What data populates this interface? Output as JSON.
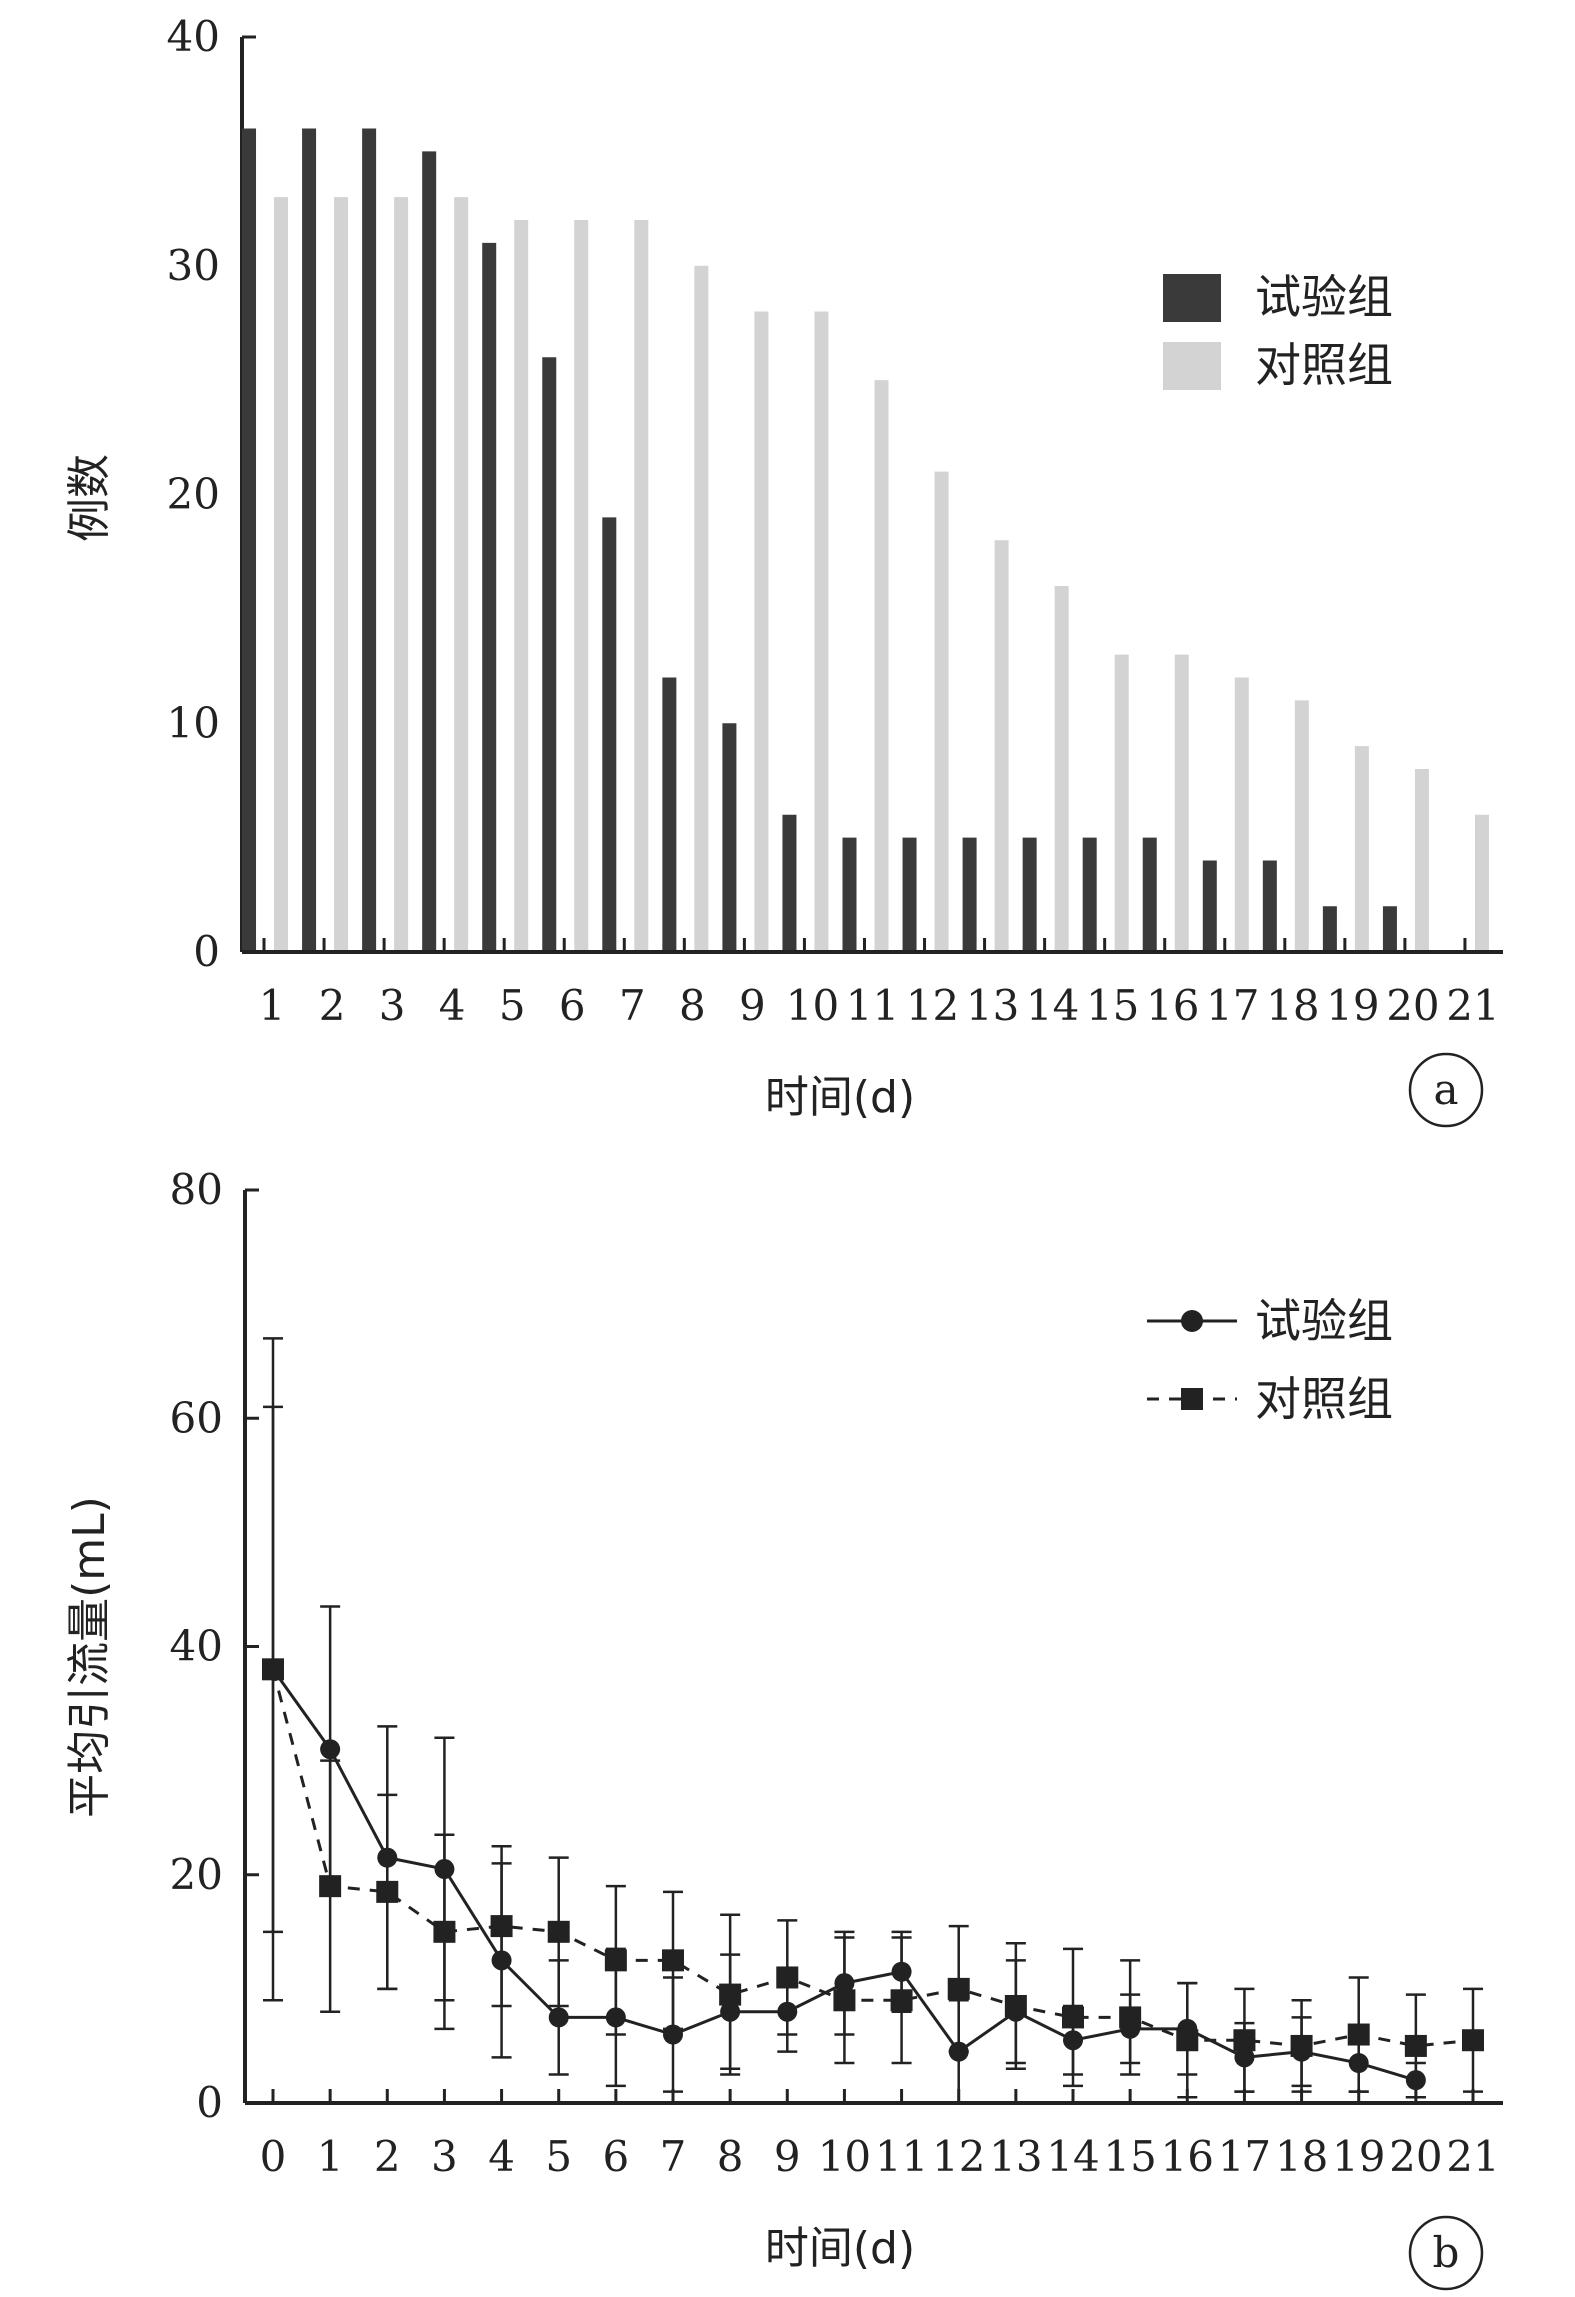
{
  "chart_data": [
    {
      "panel": "a",
      "type": "bar",
      "categories": [
        "1",
        "2",
        "3",
        "4",
        "5",
        "6",
        "7",
        "8",
        "9",
        "10",
        "11",
        "12",
        "13",
        "14",
        "15",
        "16",
        "17",
        "18",
        "19",
        "20",
        "21"
      ],
      "series": [
        {
          "name": "试验组",
          "color": "#3a3a3a",
          "values": [
            36,
            36,
            36,
            35,
            31,
            26,
            19,
            12,
            10,
            6,
            5,
            5,
            5,
            5,
            5,
            5,
            4,
            4,
            2,
            2,
            0
          ]
        },
        {
          "name": "对照组",
          "color": "#d3d3d3",
          "values": [
            33,
            33,
            33,
            33,
            32,
            32,
            32,
            30,
            28,
            28,
            25,
            21,
            18,
            16,
            13,
            13,
            12,
            11,
            9,
            8,
            6
          ]
        }
      ],
      "xlabel": "时间(d)",
      "ylabel": "例数",
      "ylim": [
        0,
        40
      ],
      "yticks": [
        "0",
        "10",
        "20",
        "30",
        "40"
      ],
      "legend": "top-right"
    },
    {
      "panel": "b",
      "type": "line",
      "x": [
        "0",
        "1",
        "2",
        "3",
        "4",
        "5",
        "6",
        "7",
        "8",
        "9",
        "10",
        "11",
        "12",
        "13",
        "14",
        "15",
        "16",
        "17",
        "18",
        "19",
        "20",
        "21"
      ],
      "series": [
        {
          "name": "试验组",
          "marker": "circle",
          "line": "solid",
          "color": "#222222",
          "values": [
            38,
            31,
            21.5,
            20.5,
            12.5,
            7.5,
            7.5,
            6,
            8,
            8,
            10.5,
            11.5,
            4.5,
            8,
            5.5,
            6.5,
            6.5,
            4,
            4.5,
            3.5,
            2,
            null
          ],
          "err": [
            29,
            12.5,
            11.5,
            11.5,
            8.5,
            5,
            6,
            5,
            5,
            3.5,
            4.5,
            3.5,
            4.5,
            4.5,
            3,
            3,
            4,
            3,
            3,
            2.5,
            1.5,
            null
          ]
        },
        {
          "name": "对照组",
          "marker": "square",
          "line": "dashed",
          "color": "#222222",
          "values": [
            38,
            19,
            18.5,
            15,
            15.5,
            15,
            12.5,
            12.5,
            9.5,
            11,
            9,
            9,
            10,
            8.5,
            7.5,
            7.5,
            5.5,
            5.5,
            5,
            6,
            5,
            5.5
          ],
          "err": [
            23,
            11,
            8.5,
            8.5,
            7,
            6.5,
            6.5,
            6,
            7,
            5,
            5.5,
            5.5,
            5.5,
            5.5,
            6,
            5,
            5,
            4.5,
            4,
            5,
            4.5,
            4.5
          ]
        }
      ],
      "xlabel": "时间(d)",
      "ylabel": "平均引流量(mL)",
      "ylim": [
        0,
        80
      ],
      "yticks": [
        "0",
        "20",
        "40",
        "60",
        "80"
      ],
      "legend": "top-right"
    }
  ]
}
